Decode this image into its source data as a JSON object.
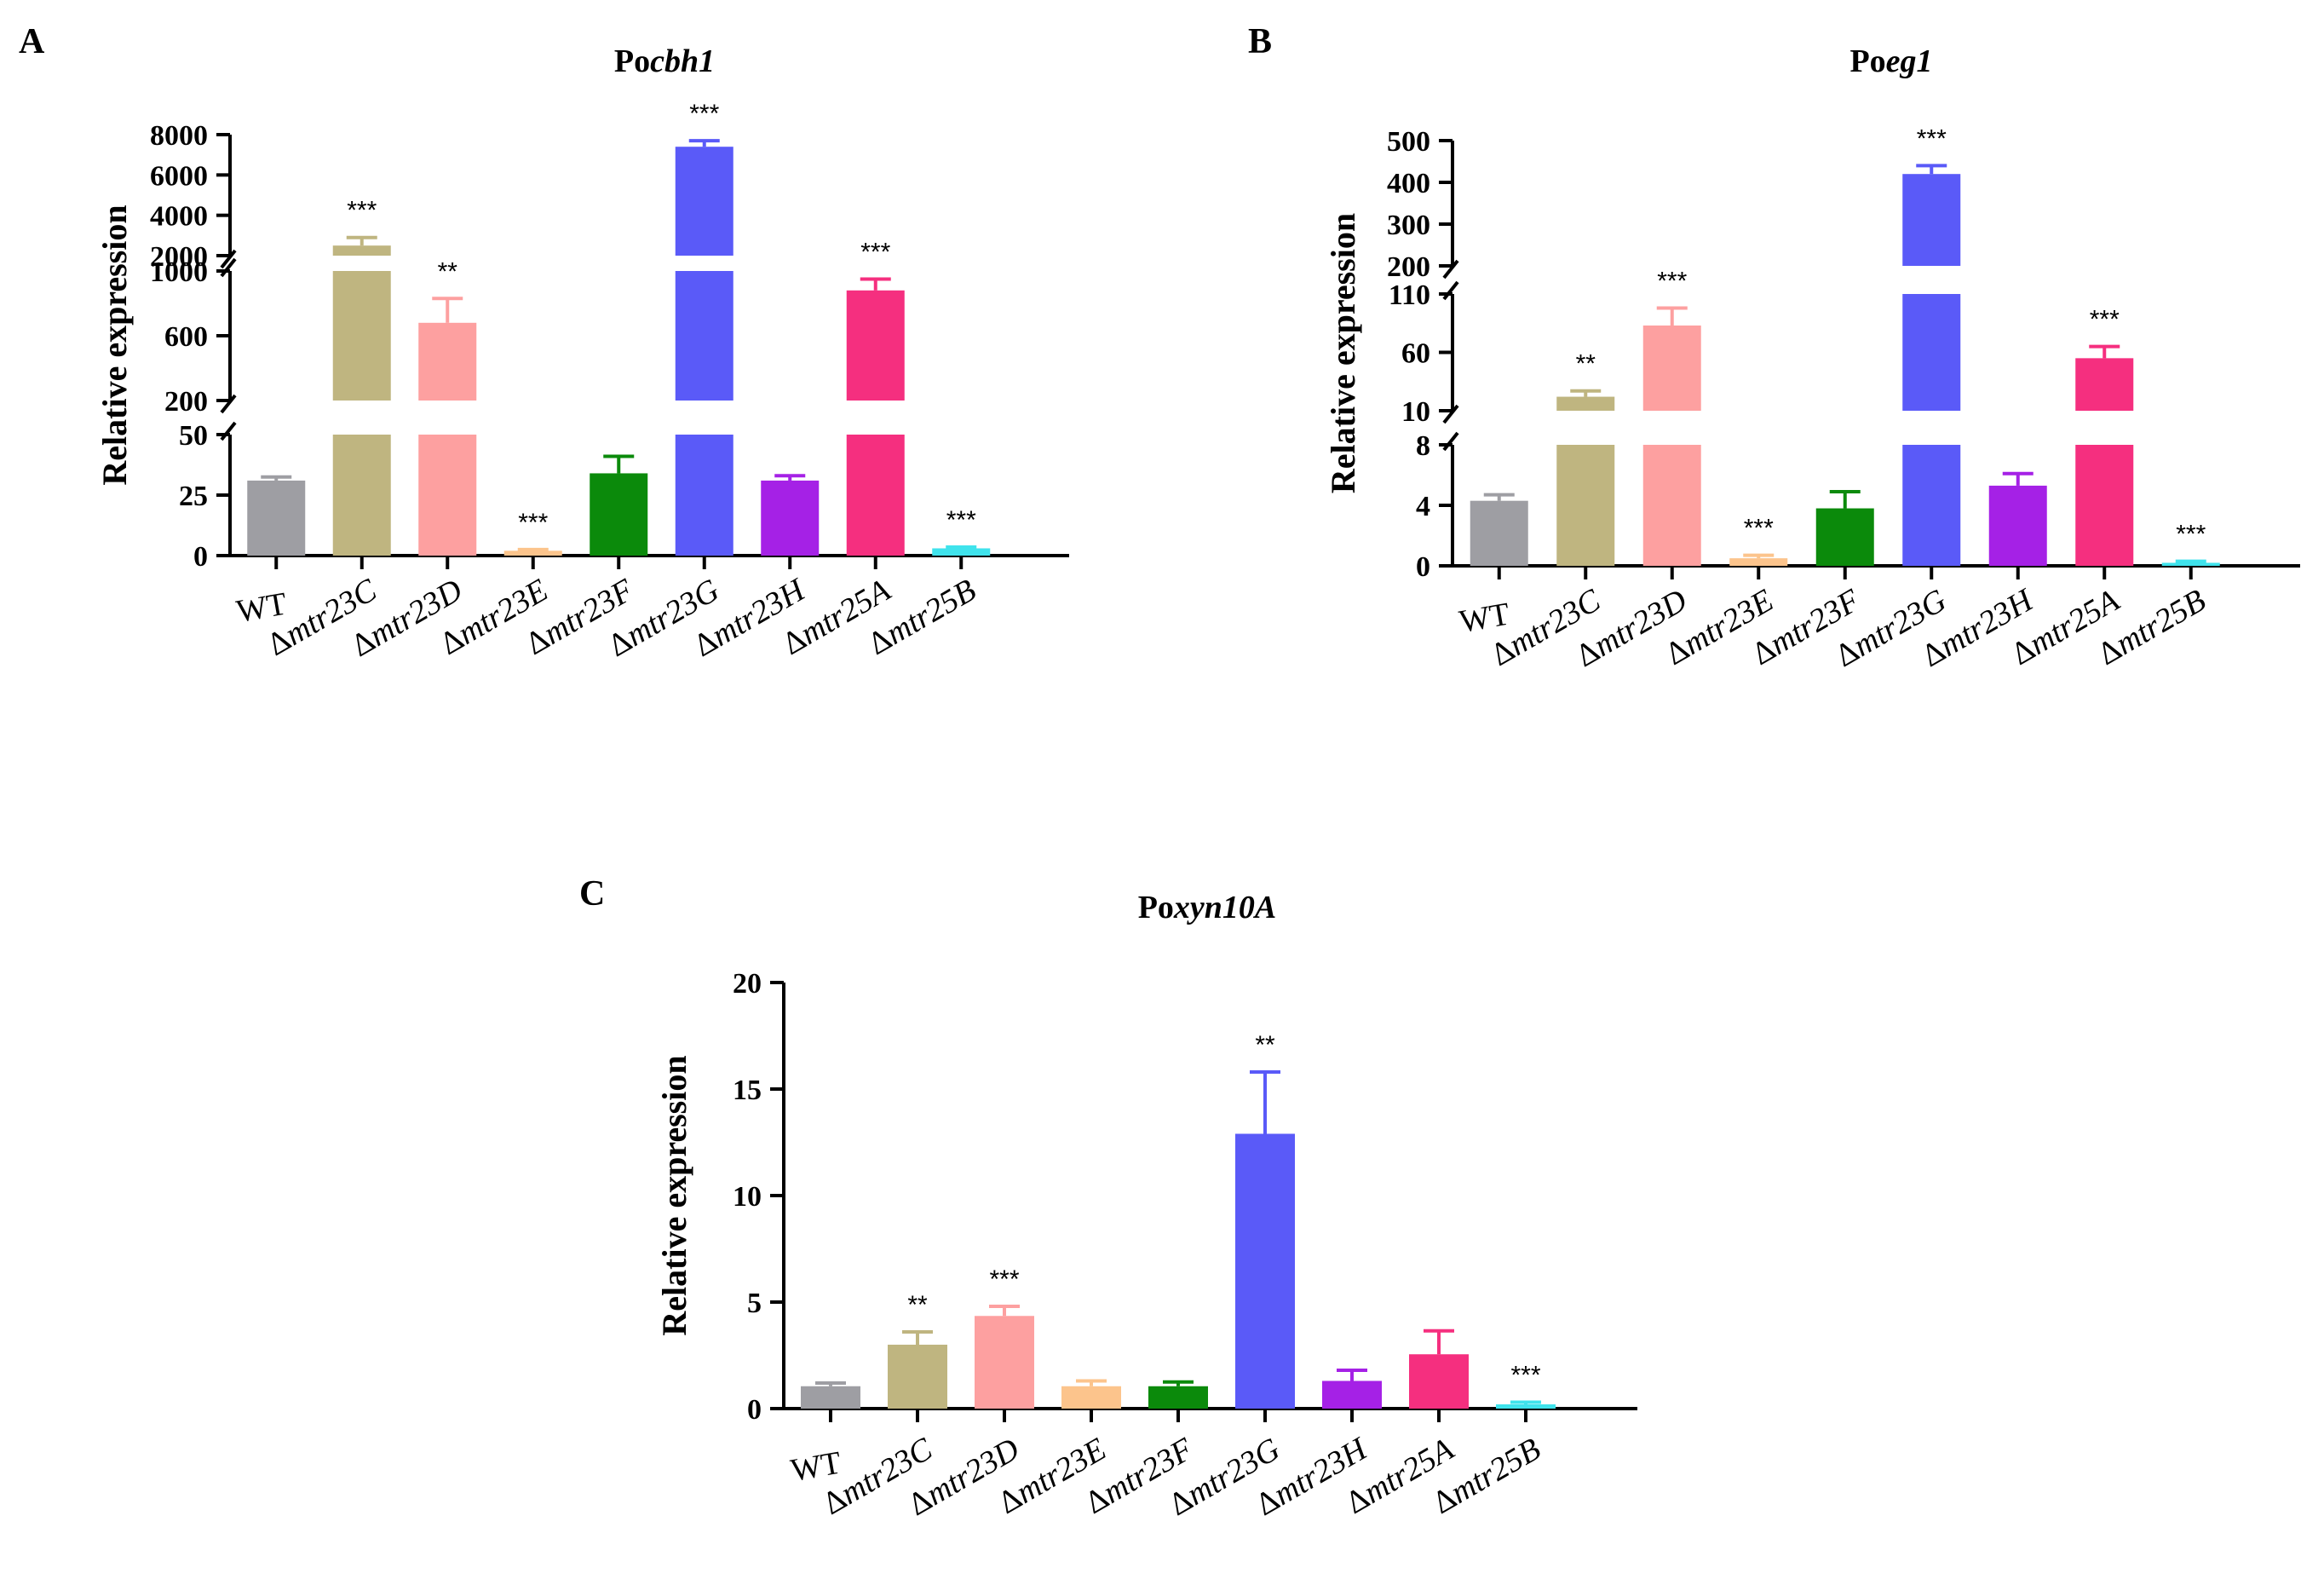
{
  "categories": [
    "WT",
    "Δmtr23C",
    "Δmtr23D",
    "Δmtr23E",
    "Δmtr23F",
    "Δmtr23G",
    "Δmtr23H",
    "Δmtr25A",
    "Δmtr25B"
  ],
  "colors": [
    "#9e9ea3",
    "#bfb580",
    "#fda0a0",
    "#fcc48c",
    "#0b8a0b",
    "#5a5af8",
    "#a521e6",
    "#f52f7f",
    "#3fe3ec"
  ],
  "chart_data": [
    {
      "panel": "A",
      "type": "bar",
      "title_prefix": "Po",
      "title_gene": "cbh1",
      "ylabel": "Relative expression",
      "categories": [
        "WT",
        "Δmtr23C",
        "Δmtr23D",
        "Δmtr23E",
        "Δmtr23F",
        "Δmtr23G",
        "Δmtr23H",
        "Δmtr25A",
        "Δmtr25B"
      ],
      "values": [
        31,
        2500,
        680,
        2,
        34,
        7400,
        31,
        880,
        3
      ],
      "errors": [
        1.5,
        400,
        150,
        0.5,
        7,
        300,
        2,
        70,
        0.5
      ],
      "significance": [
        "",
        "***",
        "**",
        "***",
        "",
        "***",
        "",
        "***",
        "***"
      ],
      "broken_axis_segments": [
        {
          "range": [
            0,
            50
          ],
          "ticks": [
            0,
            25,
            50
          ],
          "tick_labels": [
            "0",
            "25",
            "50"
          ]
        },
        {
          "range": [
            200,
            1000
          ],
          "ticks": [
            200,
            600,
            1000
          ],
          "tick_labels": [
            "200",
            "600",
            "1000"
          ]
        },
        {
          "range": [
            2000,
            8000
          ],
          "ticks": [
            2000,
            4000,
            6000,
            8000
          ],
          "tick_labels": [
            "2000",
            "4000",
            "6000",
            "8000"
          ]
        }
      ]
    },
    {
      "panel": "B",
      "type": "bar",
      "title_prefix": "Po",
      "title_gene": "eg1",
      "ylabel": "Relative expression",
      "categories": [
        "WT",
        "Δmtr23C",
        "Δmtr23D",
        "Δmtr23E",
        "Δmtr23F",
        "Δmtr23G",
        "Δmtr23H",
        "Δmtr25A",
        "Δmtr25B"
      ],
      "values": [
        4.3,
        22,
        83,
        0.5,
        3.8,
        420,
        5.3,
        55,
        0.2
      ],
      "errors": [
        0.4,
        5,
        15,
        0.2,
        1.1,
        20,
        0.8,
        10,
        0.1
      ],
      "significance": [
        "",
        "**",
        "***",
        "***",
        "",
        "***",
        "",
        "***",
        "***"
      ],
      "broken_axis_segments": [
        {
          "range": [
            0,
            8
          ],
          "ticks": [
            0,
            4,
            8
          ],
          "tick_labels": [
            "0",
            "4",
            "8"
          ]
        },
        {
          "range": [
            10,
            110
          ],
          "ticks": [
            10,
            60,
            110
          ],
          "tick_labels": [
            "10",
            "60",
            "110"
          ]
        },
        {
          "range": [
            200,
            500
          ],
          "ticks": [
            200,
            300,
            400,
            500
          ],
          "tick_labels": [
            "200",
            "300",
            "400",
            "500"
          ]
        }
      ]
    },
    {
      "panel": "C",
      "type": "bar",
      "title_prefix": "Po",
      "title_gene": "xyn10A",
      "ylabel": "Relative expression",
      "categories": [
        "WT",
        "Δmtr23C",
        "Δmtr23D",
        "Δmtr23E",
        "Δmtr23F",
        "Δmtr23G",
        "Δmtr23H",
        "Δmtr25A",
        "Δmtr25B"
      ],
      "values": [
        1.05,
        3.0,
        4.35,
        1.05,
        1.05,
        12.9,
        1.3,
        2.55,
        0.2
      ],
      "errors": [
        0.15,
        0.6,
        0.45,
        0.25,
        0.2,
        2.9,
        0.5,
        1.1,
        0.1
      ],
      "significance": [
        "",
        "**",
        "***",
        "",
        "",
        "**",
        "",
        "",
        "***"
      ],
      "ylim": [
        0,
        20
      ],
      "ticks": [
        0,
        5,
        10,
        15,
        20
      ],
      "tick_labels": [
        "0",
        "5",
        "10",
        "15",
        "20"
      ]
    }
  ]
}
